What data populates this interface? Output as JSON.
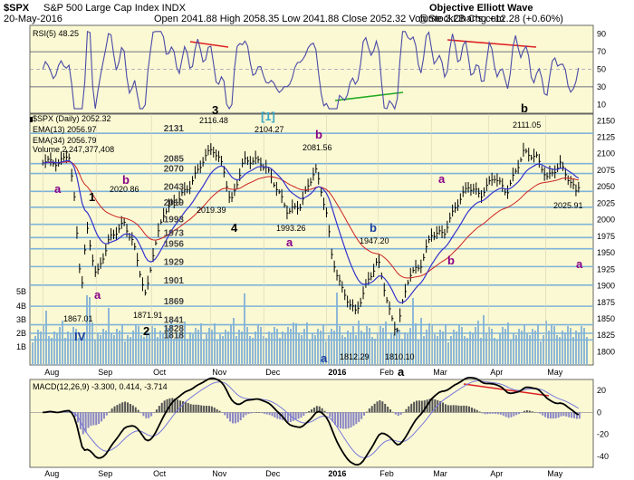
{
  "header": {
    "symbol": "$SPX",
    "name": "S&P 500 Large Cap Index  INDX",
    "date": "20-May-2016",
    "ohlc": "Open 2041.88  High 2058.35  Low 2041.88  Close 2052.32  Volume 2.2B  Chg +12.28 (+0.60%)",
    "credit": "Objective Elliott Wave",
    "volume": "@StockCharts.com"
  },
  "rsi": {
    "label": "RSI(5) 48.25",
    "ticks": [
      "90",
      "70",
      "50",
      "30",
      "10"
    ]
  },
  "legend": {
    "price": "$SPX (Daily) 2052.32",
    "ema13": "EMA(13) 2056.97",
    "ema34": "EMA(34) 2056.79",
    "volume": "Volume 2,247,377,408"
  },
  "macd": {
    "label": "MACD(12,26,9) -3.300, 0.414, -3.714",
    "ticks": [
      "20",
      "0",
      "-20",
      "-40"
    ]
  },
  "months": [
    "Aug",
    "Sep",
    "Oct",
    "Nov",
    "Dec",
    "2016",
    "Feb",
    "Mar",
    "Apr",
    "May"
  ],
  "price_ticks": [
    "2150",
    "2125",
    "2100",
    "2075",
    "2050",
    "2025",
    "2000",
    "1975",
    "1950",
    "1925",
    "1900",
    "1875",
    "1850",
    "1825",
    "1800"
  ],
  "volume_ticks": [
    "5B",
    "4B",
    "3B",
    "2B",
    "1B"
  ],
  "levels": [
    "2131",
    "2085",
    "2070",
    "2043",
    "2019",
    "1993",
    "1973",
    "1956",
    "1929",
    "1901",
    "1869",
    "1841",
    "1828",
    "1818"
  ],
  "wave_labels": [
    {
      "text": "1",
      "color": "#000000"
    },
    {
      "text": "a",
      "color": "#880088"
    },
    {
      "text": "b",
      "color": "#880088"
    },
    {
      "text": "a",
      "color": "#880088"
    },
    {
      "text": "IV",
      "color": "#1a3fa0"
    },
    {
      "text": "2",
      "color": "#000000"
    },
    {
      "text": "3",
      "color": "#000000"
    },
    {
      "text": "4",
      "color": "#000000"
    },
    {
      "text": "[1]",
      "color": "#3aa6c8"
    },
    {
      "text": "b",
      "color": "#880088"
    },
    {
      "text": "a",
      "color": "#880088"
    },
    {
      "text": "a",
      "color": "#1a3fa0"
    },
    {
      "text": "b",
      "color": "#1a3fa0"
    },
    {
      "text": "a",
      "color": "#000000"
    },
    {
      "text": "a",
      "color": "#880088"
    },
    {
      "text": "b",
      "color": "#880088"
    },
    {
      "text": "b",
      "color": "#000000"
    },
    {
      "text": "a",
      "color": "#880088"
    }
  ],
  "price_annotations": [
    "2116.48",
    "2104.27",
    "2081.56",
    "2111.05",
    "2020.86",
    "2019.39",
    "1993.26",
    "1947.20",
    "2025.91",
    "1867.01",
    "1871.91",
    "1812.29",
    "1810.10"
  ],
  "chart_data": {
    "type": "line",
    "title": "$SPX S&P 500 Large Cap Index INDX",
    "x_range": [
      "2015-08-01",
      "2016-05-20"
    ],
    "ylim": [
      1780,
      2160
    ],
    "price": {
      "x": [
        "2015-08-03",
        "2015-08-12",
        "2015-08-17",
        "2015-08-20",
        "2015-08-24",
        "2015-08-27",
        "2015-09-01",
        "2015-09-08",
        "2015-09-16",
        "2015-09-21",
        "2015-09-28",
        "2015-10-02",
        "2015-10-08",
        "2015-10-16",
        "2015-10-22",
        "2015-10-29",
        "2015-11-03",
        "2015-11-09",
        "2015-11-13",
        "2015-11-20",
        "2015-11-27",
        "2015-12-02",
        "2015-12-08",
        "2015-12-14",
        "2015-12-21",
        "2015-12-29",
        "2016-01-04",
        "2016-01-07",
        "2016-01-13",
        "2016-01-20",
        "2016-01-26",
        "2016-02-01",
        "2016-02-08",
        "2016-02-11",
        "2016-02-18",
        "2016-02-24",
        "2016-03-01",
        "2016-03-08",
        "2016-03-14",
        "2016-03-21",
        "2016-03-28",
        "2016-04-04",
        "2016-04-11",
        "2016-04-20",
        "2016-04-27",
        "2016-05-03",
        "2016-05-10",
        "2016-05-19",
        "2016-05-20"
      ],
      "close": [
        2090,
        2085,
        2102,
        2035,
        1893,
        1988,
        1913,
        1970,
        1995,
        1966,
        1882,
        1951,
        2013,
        2033,
        2052,
        2090,
        2109,
        2080,
        2023,
        2089,
        2090,
        2080,
        2048,
        2012,
        2022,
        2078,
        2012,
        1943,
        1890,
        1859,
        1903,
        1939,
        1853,
        1829,
        1917,
        1929,
        1978,
        1980,
        2019,
        2051,
        2037,
        2066,
        2041,
        2102,
        2095,
        2063,
        2084,
        2040,
        2052
      ]
    },
    "ema13_last": 2056.97,
    "ema34_last": 2056.79,
    "rsi_ylim": [
      0,
      100
    ],
    "rsi_last": 48.25,
    "macd_last": -3.3,
    "macd_signal_last": 0.414,
    "macd_hist_last": -3.714,
    "macd_ylim": [
      -50,
      30
    ],
    "horizontal_levels": [
      2131,
      2085,
      2070,
      2043,
      2019,
      1993,
      1973,
      1956,
      1929,
      1901,
      1869,
      1841,
      1828,
      1818
    ]
  }
}
